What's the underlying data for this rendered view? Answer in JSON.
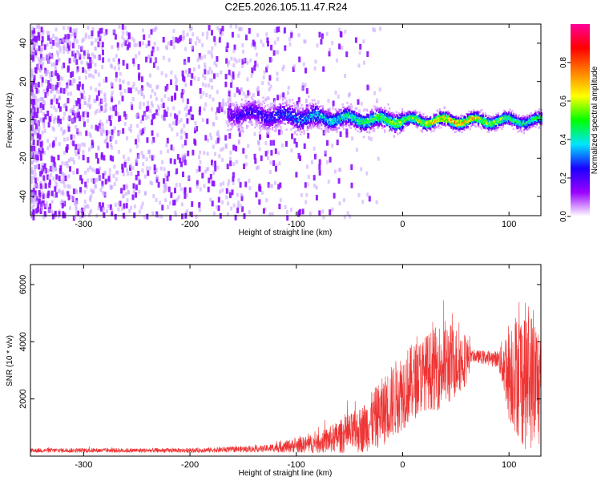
{
  "title": "C2E5.2026.105.11.47.R24",
  "chart_data": [
    {
      "type": "heatmap",
      "xlabel": "Height of straight line (km)",
      "ylabel": "Frequency (Hz)",
      "xlim": [
        -350,
        130
      ],
      "ylim": [
        -50,
        50
      ],
      "xticks": [
        -300,
        -200,
        -100,
        0,
        100
      ],
      "yticks": [
        -40,
        -20,
        0,
        20,
        40
      ],
      "colorbar": {
        "label": "Normalized spectral amplitude",
        "range": [
          0.0,
          1.0
        ],
        "ticks": [
          0.0,
          0.2,
          0.4,
          0.6,
          0.8
        ],
        "tick_labels": [
          "0.0",
          "0.2",
          "0.4",
          "0.6",
          "0.8"
        ],
        "colormap": [
          "#ffffff",
          "#9b00ff",
          "#1a00ff",
          "#00e5ff",
          "#00ff00",
          "#ffff00",
          "#ff8000",
          "#ff0000",
          "#ff0099"
        ]
      },
      "description_points": [
        {
          "x": -350,
          "freq_center": 0,
          "amplitude": 0.05,
          "note": "broadband noise"
        },
        {
          "x": -160,
          "freq_center": 4,
          "amplitude": 0.2
        },
        {
          "x": -100,
          "freq_center": 2,
          "amplitude": 0.3
        },
        {
          "x": -50,
          "freq_center": 1,
          "amplitude": 0.45
        },
        {
          "x": 0,
          "freq_center": 0,
          "amplitude": 0.55
        },
        {
          "x": 50,
          "freq_center": 0,
          "amplitude": 0.75
        },
        {
          "x": 100,
          "freq_center": 0,
          "amplitude": 0.5
        },
        {
          "x": 130,
          "freq_center": 0,
          "amplitude": 0.45
        }
      ]
    },
    {
      "type": "line",
      "xlabel": "Height of straight line (km)",
      "ylabel": "SNR (10 * v/v)",
      "xlim": [
        -350,
        130
      ],
      "ylim": [
        0,
        6700
      ],
      "xticks": [
        -300,
        -200,
        -100,
        0,
        100
      ],
      "yticks": [
        2000,
        4000,
        6000
      ],
      "color": "#ee3333",
      "envelope": [
        {
          "x": -350,
          "mean": 200,
          "spread": 80
        },
        {
          "x": -200,
          "mean": 200,
          "spread": 80
        },
        {
          "x": -130,
          "mean": 260,
          "spread": 120
        },
        {
          "x": -80,
          "mean": 450,
          "spread": 350
        },
        {
          "x": -40,
          "mean": 900,
          "spread": 800
        },
        {
          "x": -20,
          "mean": 1500,
          "spread": 1200
        },
        {
          "x": 0,
          "mean": 2300,
          "spread": 1400
        },
        {
          "x": 20,
          "mean": 2900,
          "spread": 1300
        },
        {
          "x": 40,
          "mean": 3200,
          "spread": 1600
        },
        {
          "x": 60,
          "mean": 3400,
          "spread": 900
        },
        {
          "x": 65,
          "mean": 3500,
          "spread": 200
        },
        {
          "x": 90,
          "mean": 3400,
          "spread": 300
        },
        {
          "x": 100,
          "mean": 3000,
          "spread": 1800
        },
        {
          "x": 115,
          "mean": 2800,
          "spread": 2600
        },
        {
          "x": 130,
          "mean": 2500,
          "spread": 2200
        }
      ]
    }
  ]
}
